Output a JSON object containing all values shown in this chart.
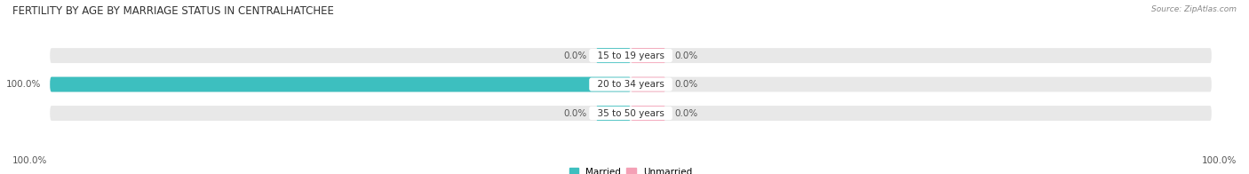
{
  "title": "FERTILITY BY AGE BY MARRIAGE STATUS IN CENTRALHATCHEE",
  "source": "Source: ZipAtlas.com",
  "categories": [
    "15 to 19 years",
    "20 to 34 years",
    "35 to 50 years"
  ],
  "married": [
    0.0,
    100.0,
    0.0
  ],
  "unmarried": [
    0.0,
    0.0,
    0.0
  ],
  "married_color": "#3DBFBF",
  "unmarried_color": "#F4A0B5",
  "bar_bg_color": "#E8E8E8",
  "bar_height": 0.52,
  "title_fontsize": 8.5,
  "label_fontsize": 7.5,
  "source_fontsize": 6.5,
  "tick_fontsize": 7.5,
  "xlim": 100,
  "x_axis_left_label": "100.0%",
  "x_axis_right_label": "100.0%",
  "fig_bg_color": "#FFFFFF",
  "ax_bg_color": "#FFFFFF",
  "stub_size": 6.0
}
